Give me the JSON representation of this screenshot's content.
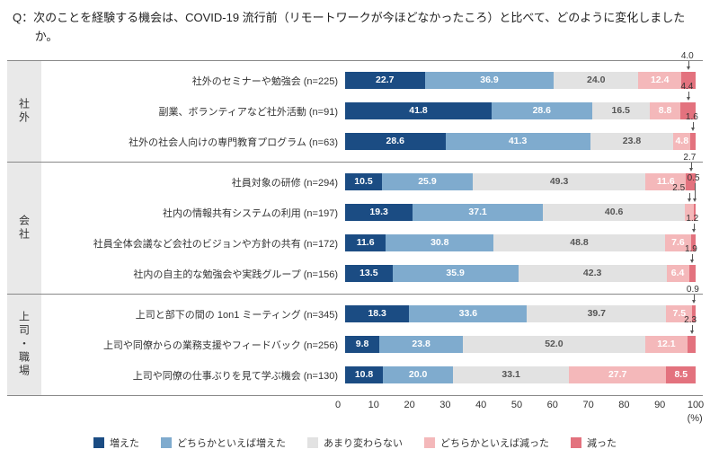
{
  "title": "Q：次のことを経験する機会は、COVID-19 流行前（リモートワークが今ほどなかったころ）と比べて、どのように変化しましたか。",
  "chart_data": {
    "type": "bar",
    "orientation": "horizontal",
    "stacked": true,
    "unit": "%",
    "xlim": [
      0,
      100
    ],
    "x_ticks": [
      0,
      10,
      20,
      30,
      40,
      50,
      60,
      70,
      80,
      90,
      100
    ],
    "x_unit_label": "(%)",
    "legend_position": "bottom",
    "series_names": [
      "増えた",
      "どちらかといえば増えた",
      "あまり変わらない",
      "どちらかといえば減った",
      "減った"
    ],
    "series_colors": [
      "#1b4c83",
      "#7fabce",
      "#e2e2e2",
      "#f4b8ba",
      "#e3727e"
    ],
    "groups": [
      {
        "label": "社外",
        "rows": [
          {
            "label": "社外のセミナーや勉強会 (n=225)",
            "values": [
              22.7,
              36.9,
              24.0,
              12.4,
              4.0
            ],
            "callouts": [
              {
                "series": 4,
                "text": "4.0"
              }
            ]
          },
          {
            "label": "副業、ボランティアなど社外活動 (n=91)",
            "values": [
              41.8,
              28.6,
              16.5,
              8.8,
              4.4
            ],
            "callouts": [
              {
                "series": 4,
                "text": "4.4"
              }
            ]
          },
          {
            "label": "社外の社会人向けの専門教育プログラム (n=63)",
            "values": [
              28.6,
              41.3,
              23.8,
              4.8,
              1.6
            ],
            "callouts": [
              {
                "series": 4,
                "text": "1.6"
              }
            ]
          }
        ]
      },
      {
        "label": "会社",
        "rows": [
          {
            "label": "社員対象の研修 (n=294)",
            "values": [
              10.5,
              25.9,
              49.3,
              11.6,
              2.7
            ],
            "callouts": [
              {
                "series": 4,
                "text": "2.7"
              }
            ]
          },
          {
            "label": "社内の情報共有システムの利用 (n=197)",
            "values": [
              19.3,
              37.1,
              40.6,
              2.5,
              0.5
            ],
            "callouts": [
              {
                "series": 3,
                "text": "2.5"
              },
              {
                "series": 4,
                "text": "0.5"
              }
            ]
          },
          {
            "label": "社員全体会議など会社のビジョンや方針の共有 (n=172)",
            "values": [
              11.6,
              30.8,
              48.8,
              7.6,
              1.2
            ],
            "callouts": [
              {
                "series": 4,
                "text": "1.2"
              }
            ]
          },
          {
            "label": "社内の自主的な勉強会や実践グループ (n=156)",
            "values": [
              13.5,
              35.9,
              42.3,
              6.4,
              1.9
            ],
            "callouts": [
              {
                "series": 4,
                "text": "1.9"
              }
            ]
          }
        ]
      },
      {
        "label": "上司・職場",
        "rows": [
          {
            "label": "上司と部下の間の 1on1 ミーティング (n=345)",
            "values": [
              18.3,
              33.6,
              39.7,
              7.5,
              0.9
            ],
            "callouts": [
              {
                "series": 4,
                "text": "0.9"
              }
            ]
          },
          {
            "label": "上司や同僚からの業務支援やフィードバック (n=256)",
            "values": [
              9.8,
              23.8,
              52.0,
              12.1,
              2.3
            ],
            "callouts": [
              {
                "series": 4,
                "text": "2.3"
              }
            ]
          },
          {
            "label": "上司や同僚の仕事ぶりを見て学ぶ機会 (n=130)",
            "values": [
              10.8,
              20.0,
              33.1,
              27.7,
              8.5
            ],
            "callouts": []
          }
        ]
      }
    ]
  }
}
